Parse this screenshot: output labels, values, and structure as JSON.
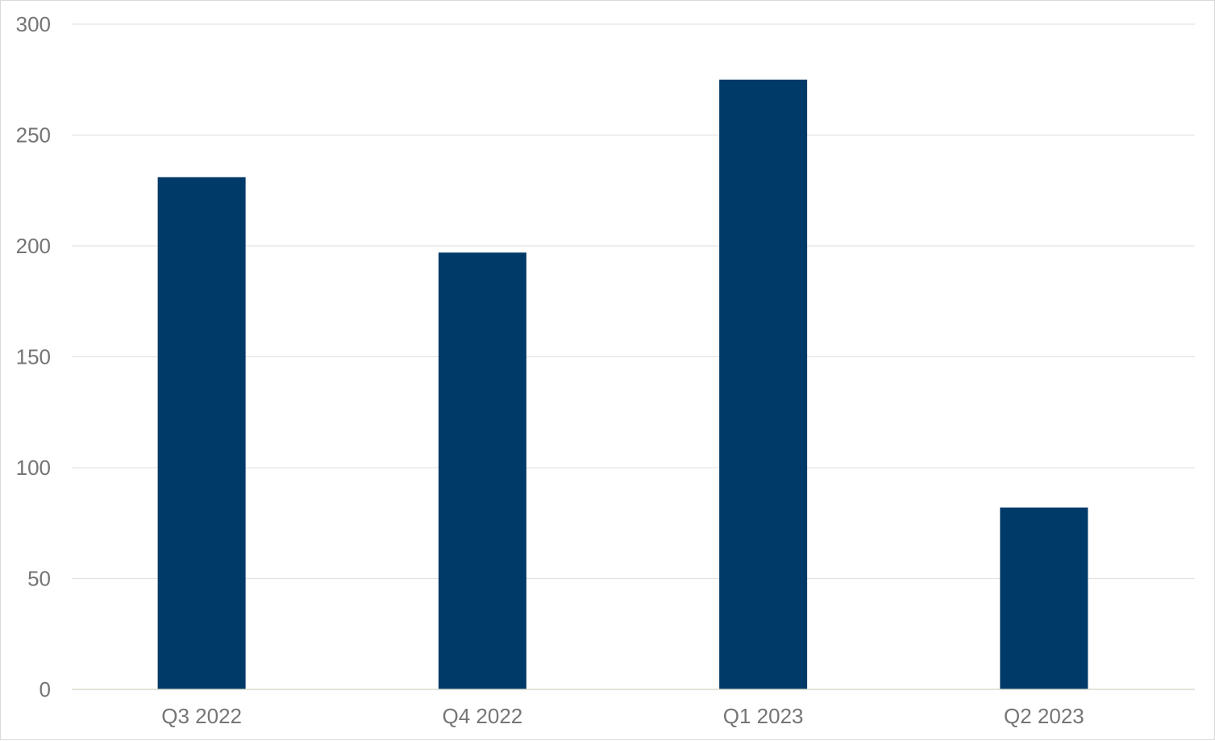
{
  "chart_data": {
    "type": "bar",
    "categories": [
      "Q3 2022",
      "Q4 2022",
      "Q1 2023",
      "Q2 2023"
    ],
    "series": [
      {
        "values": [
          231,
          197,
          275,
          82
        ]
      }
    ],
    "title": "",
    "xlabel": "",
    "ylabel": "",
    "ylim": [
      0,
      300
    ],
    "yticks": [
      "0",
      "50",
      "100",
      "150",
      "200",
      "250",
      "300"
    ],
    "grid": true,
    "legend": "none",
    "bar_color": "#003a69"
  }
}
